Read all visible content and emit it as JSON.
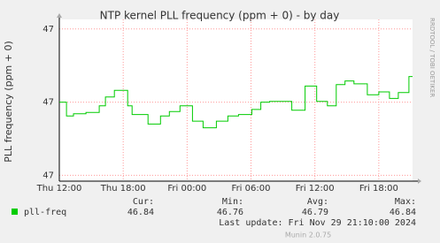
{
  "chart_data": {
    "type": "line",
    "title": "NTP kernel PLL frequency (ppm + 0) - by day",
    "y_label": "PLL frequency (ppm + 0)",
    "side_text": "RRDTOOL / TOBI OETIKER",
    "ylim": [
      46.692,
      46.913
    ],
    "yticks": [
      {
        "value": 46.7,
        "label": "47"
      },
      {
        "value": 46.8,
        "label": "47"
      },
      {
        "value": 46.9,
        "label": "47"
      }
    ],
    "xlim": [
      12,
      45.17
    ],
    "xticks": [
      {
        "value": 12,
        "label": "Thu 12:00"
      },
      {
        "value": 18,
        "label": "Thu 18:00"
      },
      {
        "value": 24,
        "label": "Fri 00:00"
      },
      {
        "value": 30,
        "label": "Fri 06:00"
      },
      {
        "value": 36,
        "label": "Fri 12:00"
      },
      {
        "value": 42,
        "label": "Fri 18:00"
      }
    ],
    "grid": true,
    "x": [
      12,
      12.67,
      12.67,
      13.33,
      13.33,
      14.5,
      14.5,
      15.75,
      15.75,
      16.33,
      16.33,
      17.17,
      17.17,
      18.42,
      18.42,
      18.83,
      18.83,
      20.33,
      20.33,
      21.5,
      21.5,
      22.33,
      22.33,
      23.33,
      23.33,
      24.5,
      24.5,
      25.5,
      25.5,
      26.75,
      26.75,
      27.83,
      27.83,
      28.83,
      28.83,
      30.08,
      30.08,
      30.92,
      30.92,
      31.75,
      31.75,
      33.83,
      33.83,
      35.08,
      35.08,
      36.17,
      36.17,
      37.17,
      37.17,
      38,
      38,
      38.83,
      38.83,
      39.67,
      39.67,
      40.92,
      40.92,
      42,
      42,
      43,
      43,
      43.83,
      43.83,
      44.83,
      44.83,
      45.17
    ],
    "series": [
      {
        "name": "pll-freq",
        "color": "#00cc00",
        "values": [
          46.8,
          46.8,
          46.781,
          46.781,
          46.784,
          46.784,
          46.786,
          46.786,
          46.795,
          46.795,
          46.807,
          46.807,
          46.816,
          46.816,
          46.795,
          46.795,
          46.783,
          46.783,
          46.77,
          46.77,
          46.781,
          46.781,
          46.787,
          46.787,
          46.795,
          46.795,
          46.774,
          46.774,
          46.765,
          46.765,
          46.774,
          46.774,
          46.781,
          46.781,
          46.783,
          46.783,
          46.79,
          46.79,
          46.8,
          46.8,
          46.801,
          46.801,
          46.789,
          46.789,
          46.822,
          46.822,
          46.801,
          46.801,
          46.795,
          46.795,
          46.824,
          46.824,
          46.829,
          46.829,
          46.825,
          46.825,
          46.81,
          46.81,
          46.814,
          46.814,
          46.805,
          46.805,
          46.813,
          46.813,
          46.835,
          46.835
        ],
        "stats": [
          46.84,
          46.76,
          46.79,
          46.84
        ]
      }
    ],
    "stat_headers": [
      "Cur:",
      "Min:",
      "Avg:",
      "Max:"
    ],
    "last_update": "Last update: Fri Nov 29 21:10:00 2024",
    "footer": "Munin 2.0.75"
  }
}
